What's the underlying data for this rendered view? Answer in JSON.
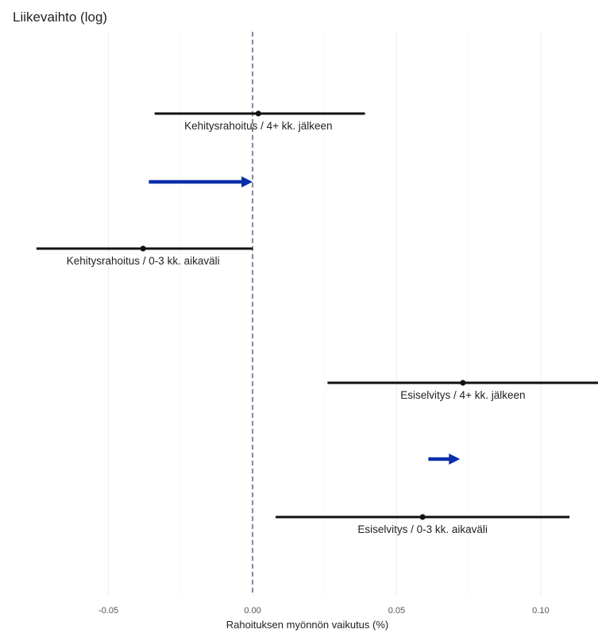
{
  "chart_data": {
    "type": "forest",
    "title": "Liikevaihto (log)",
    "xlabel": "Rahoituksen myönnön vaikutus (%)",
    "xlim": [
      -0.0725,
      0.1185
    ],
    "xticks": [
      {
        "value": -0.05,
        "label": "-0.05"
      },
      {
        "value": 0.0,
        "label": "0.00"
      },
      {
        "value": 0.05,
        "label": "0.05"
      },
      {
        "value": 0.1,
        "label": "0.10"
      }
    ],
    "reference_line": 0.0,
    "grid": "vertical",
    "series": [
      {
        "label": "Kehitysrahoitus / 4+ kk. jälkeen",
        "estimate": 0.002,
        "lower": -0.034,
        "upper": 0.039
      },
      {
        "label": "Kehitysrahoitus / 0-3 kk. aikaväli",
        "estimate": -0.038,
        "lower": -0.075,
        "upper": 0.0
      },
      {
        "label": "Esiselvitys / 4+ kk. jälkeen",
        "estimate": 0.073,
        "lower": 0.026,
        "upper": 0.12
      },
      {
        "label": "Esiselvitys / 0-3 kk. aikaväli",
        "estimate": 0.059,
        "lower": 0.008,
        "upper": 0.11
      }
    ],
    "annotations": [
      {
        "type": "arrow",
        "from": -0.036,
        "to": 0.0,
        "color": "#0a2ea8"
      },
      {
        "type": "arrow",
        "from": 0.061,
        "to": 0.072,
        "color": "#0a2ea8"
      }
    ],
    "colors": {
      "ci": "#111111",
      "arrow": "#0a2ea8",
      "grid": "#ebebeb",
      "refline": "#444466"
    }
  }
}
